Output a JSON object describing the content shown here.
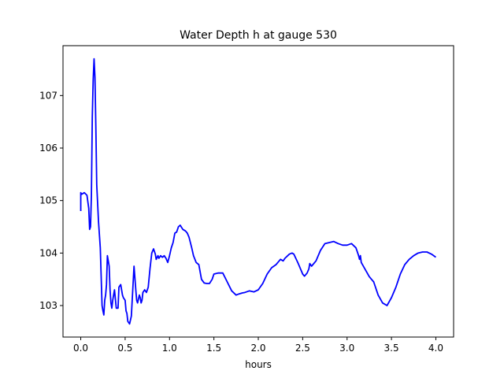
{
  "chart_data": {
    "type": "line",
    "title": "Water Depth h at gauge 530",
    "xlabel": "hours",
    "ylabel": "",
    "xlim": [
      -0.2,
      4.2
    ],
    "ylim": [
      102.4,
      107.95
    ],
    "grid": false,
    "xticks": [
      0.0,
      0.5,
      1.0,
      1.5,
      2.0,
      2.5,
      3.0,
      3.5,
      4.0
    ],
    "xtick_labels": [
      "0.0",
      "0.5",
      "1.0",
      "1.5",
      "2.0",
      "2.5",
      "3.0",
      "3.5",
      "4.0"
    ],
    "yticks": [
      103,
      104,
      105,
      106,
      107
    ],
    "ytick_labels": [
      "103",
      "104",
      "105",
      "106",
      "107"
    ],
    "series": [
      {
        "color": "#0000ff",
        "x": [
          0.0,
          0.0,
          0.01,
          0.04,
          0.07,
          0.09,
          0.1,
          0.11,
          0.12,
          0.13,
          0.14,
          0.15,
          0.16,
          0.17,
          0.18,
          0.2,
          0.22,
          0.24,
          0.25,
          0.26,
          0.27,
          0.28,
          0.29,
          0.3,
          0.31,
          0.32,
          0.33,
          0.34,
          0.35,
          0.36,
          0.38,
          0.4,
          0.42,
          0.43,
          0.45,
          0.47,
          0.48,
          0.5,
          0.51,
          0.52,
          0.53,
          0.55,
          0.57,
          0.6,
          0.62,
          0.63,
          0.64,
          0.66,
          0.67,
          0.68,
          0.69,
          0.7,
          0.72,
          0.74,
          0.76,
          0.78,
          0.8,
          0.82,
          0.84,
          0.85,
          0.87,
          0.88,
          0.9,
          0.92,
          0.94,
          0.96,
          0.98,
          1.0,
          1.02,
          1.04,
          1.06,
          1.08,
          1.1,
          1.12,
          1.15,
          1.18,
          1.2,
          1.22,
          1.25,
          1.27,
          1.3,
          1.33,
          1.36,
          1.39,
          1.42,
          1.45,
          1.48,
          1.5,
          1.55,
          1.6,
          1.65,
          1.7,
          1.75,
          1.78,
          1.82,
          1.85,
          1.9,
          1.95,
          2.0,
          2.05,
          2.1,
          2.15,
          2.2,
          2.22,
          2.25,
          2.28,
          2.3,
          2.35,
          2.38,
          2.4,
          2.45,
          2.5,
          2.52,
          2.55,
          2.57,
          2.58,
          2.6,
          2.65,
          2.7,
          2.75,
          2.8,
          2.85,
          2.9,
          2.95,
          3.0,
          3.05,
          3.1,
          3.12,
          3.13,
          3.14,
          3.15,
          3.16,
          3.2,
          3.25,
          3.3,
          3.35,
          3.4,
          3.45,
          3.5,
          3.55,
          3.6,
          3.65,
          3.7,
          3.75,
          3.8,
          3.85,
          3.9,
          3.95,
          4.0
        ],
        "values": [
          104.8,
          105.15,
          105.12,
          105.15,
          105.1,
          104.85,
          104.45,
          104.5,
          105.1,
          106.6,
          107.3,
          107.7,
          107.35,
          106.4,
          105.3,
          104.6,
          104.1,
          103.0,
          102.9,
          102.82,
          103.1,
          103.2,
          103.4,
          103.95,
          103.85,
          103.75,
          103.3,
          103.05,
          102.95,
          103.1,
          103.3,
          102.95,
          102.95,
          103.35,
          103.4,
          103.2,
          103.15,
          103.1,
          102.9,
          102.85,
          102.7,
          102.65,
          102.8,
          103.75,
          103.3,
          103.1,
          103.05,
          103.2,
          103.15,
          103.05,
          103.1,
          103.25,
          103.3,
          103.25,
          103.35,
          103.7,
          104.0,
          104.08,
          103.98,
          103.88,
          103.95,
          103.9,
          103.95,
          103.92,
          103.95,
          103.9,
          103.82,
          103.95,
          104.1,
          104.2,
          104.38,
          104.4,
          104.5,
          104.53,
          104.45,
          104.42,
          104.38,
          104.3,
          104.1,
          103.95,
          103.82,
          103.78,
          103.5,
          103.43,
          103.42,
          103.42,
          103.5,
          103.6,
          103.62,
          103.62,
          103.45,
          103.28,
          103.2,
          103.22,
          103.24,
          103.25,
          103.28,
          103.26,
          103.3,
          103.42,
          103.6,
          103.72,
          103.78,
          103.82,
          103.88,
          103.85,
          103.9,
          103.98,
          104.0,
          103.98,
          103.8,
          103.6,
          103.56,
          103.62,
          103.7,
          103.8,
          103.75,
          103.85,
          104.05,
          104.18,
          104.2,
          104.22,
          104.18,
          104.15,
          104.15,
          104.18,
          104.1,
          104.0,
          103.95,
          103.88,
          103.95,
          103.82,
          103.7,
          103.55,
          103.45,
          103.2,
          103.05,
          103.0,
          103.15,
          103.35,
          103.6,
          103.78,
          103.88,
          103.95,
          104.0,
          104.02,
          104.02,
          103.98,
          103.92
        ]
      }
    ]
  }
}
